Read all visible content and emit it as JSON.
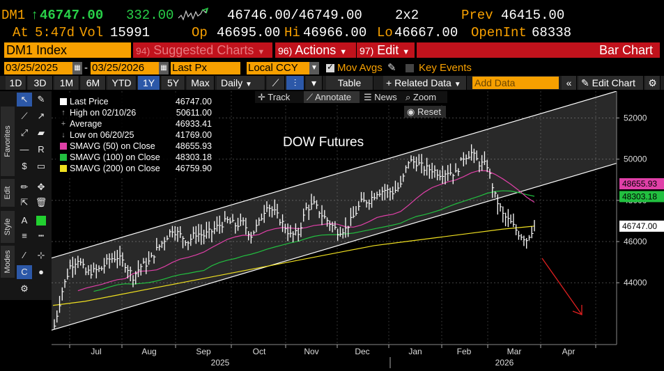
{
  "quote": {
    "ticker": "DM1",
    "arrow": "↑",
    "last": "46747.00",
    "change": "332.00",
    "bid_ask": "46746.00/46749.00",
    "size": "2x2",
    "prev_label": "Prev",
    "prev": "46415.00",
    "at_label": "At",
    "time": "5:47d",
    "vol_label": "Vol",
    "volume": "15991",
    "open_label": "Op",
    "open": "46695.00",
    "hi_label": "Hi",
    "high": "46966.00",
    "lo_label": "Lo",
    "low": "46667.00",
    "oi_label": "OpenInt",
    "open_interest": "68338"
  },
  "menu": {
    "security": "DM1 Index",
    "suggested_num": "94)",
    "suggested": "Suggested Charts",
    "actions_num": "96)",
    "actions": "Actions",
    "edit_num": "97)",
    "edit": "Edit",
    "chart_type": "Bar Chart"
  },
  "dates": {
    "start": "03/25/2025",
    "sep": "-",
    "end": "03/25/2026",
    "field": "Last Px",
    "currency": "Local CCY",
    "mov_avgs": "Mov Avgs",
    "key_events": "Key Events"
  },
  "toolbar": {
    "periods": [
      "1D",
      "3D",
      "1M",
      "6M",
      "YTD",
      "1Y",
      "5Y",
      "Max"
    ],
    "active_period": "1Y",
    "frequency": "Daily",
    "table": "Table",
    "related": "+ Related Data",
    "add_data_placeholder": "Add Data",
    "edit_chart": "Edit Chart"
  },
  "side_tabs": {
    "favorites": "Favorites",
    "edit": "Edit",
    "style": "Style",
    "modes": "Modes"
  },
  "overlay": {
    "track": "Track",
    "annotate": "Annotate",
    "news": "News",
    "zoom": "Zoom",
    "reset": "Reset"
  },
  "legend": [
    {
      "name": "Last Price",
      "value": "46747.00",
      "color": "#ffffff",
      "symbol": "box"
    },
    {
      "name": "High on 02/10/26",
      "value": "50611.00",
      "color": "#aaaaaa",
      "symbol": "↑"
    },
    {
      "name": "Average",
      "value": "46933.41",
      "color": "#aaaaaa",
      "symbol": "+"
    },
    {
      "name": "Low on 06/20/25",
      "value": "41769.00",
      "color": "#aaaaaa",
      "symbol": "↓"
    },
    {
      "name": "SMAVG (50)  on Close",
      "value": "48655.93",
      "color": "#e040a8",
      "symbol": "box"
    },
    {
      "name": "SMAVG (100)  on Close",
      "value": "48303.18",
      "color": "#22c040",
      "symbol": "box"
    },
    {
      "name": "SMAVG (200)  on Close",
      "value": "46759.90",
      "color": "#f0e020",
      "symbol": "box"
    }
  ],
  "chart_data": {
    "type": "bar",
    "title": "DOW Futures",
    "y_ticks": [
      44000,
      46000,
      48000,
      50000,
      52000
    ],
    "y_tick_labels": [
      "44000",
      "46000",
      "48000",
      "50000",
      "52000"
    ],
    "ylim": [
      41000,
      53300
    ],
    "x_months": [
      "Jul",
      "Aug",
      "Sep",
      "Oct",
      "Nov",
      "Dec",
      "Jan",
      "Feb",
      "Mar",
      "Apr"
    ],
    "x_years": [
      "2025",
      "2026"
    ],
    "price_close_weekly": [
      41900,
      43600,
      44800,
      45150,
      44500,
      44550,
      44700,
      45150,
      45250,
      44900,
      44300,
      44800,
      45000,
      45600,
      46100,
      46600,
      46300,
      46000,
      46400,
      46300,
      46500,
      46800,
      47000,
      46800,
      46900,
      46300,
      46900,
      47800,
      47400,
      46900,
      46300,
      46400,
      47600,
      47800,
      47300,
      46900,
      46500,
      46600,
      47200,
      47900,
      48000,
      48400,
      48500,
      48400,
      48700,
      49900,
      49850,
      49550,
      49500,
      49300,
      49400,
      49300,
      50100,
      50300,
      49800,
      49700,
      48200,
      47300,
      46900,
      46400,
      46100,
      46747
    ],
    "sma200_weekly": [
      42900,
      43100,
      43400,
      43700,
      44000,
      44300,
      44600,
      44900,
      45200,
      45500,
      45800,
      46000,
      46200,
      46400,
      46600,
      46750
    ],
    "sma50_end": 48655.93,
    "sma100_end": 48303.18,
    "sma200_end": 46759.9,
    "channel": {
      "upper_start": 45200,
      "upper_end": 53300,
      "lower_start": 41700,
      "lower_end": 49800
    },
    "last_price_label": "46747.00",
    "sma50_label": "48655.93",
    "sma100_label": "48303.18",
    "grid": true,
    "legend_position": "top-left"
  }
}
